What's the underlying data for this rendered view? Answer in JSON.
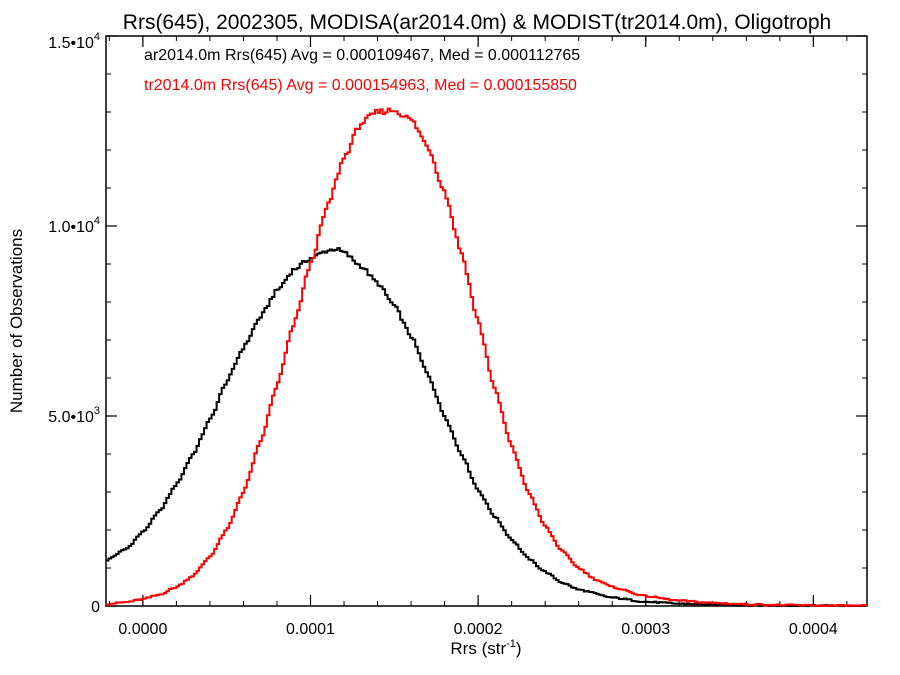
{
  "chart_data": {
    "type": "line",
    "title": "Rrs(645), 2002305, MODISA(ar2014.0m) & MODIST(tr2014.0m), Oligotroph",
    "xlabel": "Rrs (str",
    "xlabel_sup": "-1",
    "xlabel_end": ")",
    "ylabel": "Number of Observations",
    "xlim": [
      -2.2e-05,
      0.000432
    ],
    "ylim": [
      0,
      15000
    ],
    "x_ticks": [
      0.0,
      0.0001,
      0.0002,
      0.0003,
      0.0004
    ],
    "x_tick_labels": [
      "0.0000",
      "0.0001",
      "0.0002",
      "0.0003",
      "0.0004"
    ],
    "y_ticks": [
      0,
      5000,
      10000,
      15000
    ],
    "y_tick_labels": [
      {
        "mantissa": "0",
        "exp": ""
      },
      {
        "mantissa": "5.0•10",
        "exp": "3"
      },
      {
        "mantissa": "1.0•10",
        "exp": "4"
      },
      {
        "mantissa": "1.5•10",
        "exp": "4"
      }
    ],
    "grid": false,
    "step_plot": true,
    "annotations": [
      {
        "text": "ar2014.0m Rrs(645) Avg = 0.000109467, Med = 0.000112765",
        "color": "#000000"
      },
      {
        "text": "tr2014.0m Rrs(645) Avg = 0.000154963, Med = 0.000155850",
        "color": "#ff0000"
      }
    ],
    "series": [
      {
        "color": "#000000",
        "x": [
          -2.2e-05,
          -1e-05,
          0.0,
          1e-05,
          2e-05,
          3e-05,
          4e-05,
          5e-05,
          6e-05,
          7e-05,
          8e-05,
          9e-05,
          0.0001,
          0.00011,
          0.000115,
          0.00012,
          0.00013,
          0.00014,
          0.00015,
          0.00016,
          0.00017,
          0.00018,
          0.00019,
          0.0002,
          0.00021,
          0.00022,
          0.00023,
          0.00024,
          0.00025,
          0.00026,
          0.00028,
          0.0003,
          0.00032,
          0.00034,
          0.00036,
          0.00038,
          0.0004,
          0.00042,
          0.000432
        ],
        "y": [
          1200,
          1500,
          1950,
          2500,
          3200,
          4000,
          4900,
          5900,
          6800,
          7600,
          8300,
          8850,
          9150,
          9350,
          9400,
          9300,
          8950,
          8500,
          7900,
          7100,
          6100,
          5000,
          4000,
          3050,
          2350,
          1750,
          1250,
          900,
          620,
          430,
          220,
          110,
          60,
          35,
          20,
          12,
          8,
          5,
          3
        ]
      },
      {
        "color": "#ff0000",
        "x": [
          -2.2e-05,
          -1e-05,
          0.0,
          1e-05,
          2e-05,
          3e-05,
          4e-05,
          5e-05,
          6e-05,
          7e-05,
          8e-05,
          9e-05,
          0.0001,
          0.00011,
          0.00012,
          0.00013,
          0.00014,
          0.00015,
          0.00016,
          0.00017,
          0.00018,
          0.00019,
          0.0002,
          0.00021,
          0.00022,
          0.00023,
          0.00024,
          0.00025,
          0.00026,
          0.00027,
          0.00028,
          0.0003,
          0.00032,
          0.00034,
          0.00036,
          0.00038,
          0.0004,
          0.00042,
          0.000432
        ],
        "y": [
          50,
          100,
          180,
          300,
          500,
          800,
          1300,
          2000,
          3000,
          4300,
          5800,
          7400,
          9000,
          10500,
          11800,
          12700,
          13000,
          13050,
          12800,
          12100,
          10900,
          9300,
          7500,
          5700,
          4200,
          3000,
          2100,
          1450,
          1000,
          700,
          500,
          260,
          140,
          80,
          45,
          25,
          15,
          8,
          5
        ]
      }
    ]
  }
}
